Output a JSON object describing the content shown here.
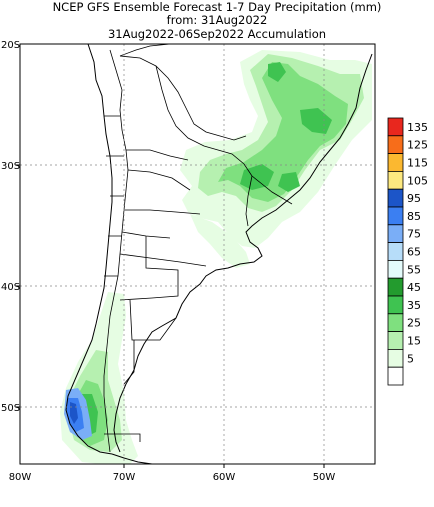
{
  "title": {
    "line1": "NCEP GFS Ensemble Forecast 1-7 Day Precipitation (mm)",
    "line2": "from: 31Aug2022",
    "line3": "31Aug2022-06Sep2022 Accumulation"
  },
  "map": {
    "region": "Southern South America",
    "latitude_labels": [
      "20S",
      "30S",
      "40S",
      "50S"
    ],
    "longitude_labels": [
      "80W",
      "70W",
      "60W",
      "50W"
    ],
    "grid": "dotted",
    "land_fill": "#ffffff",
    "border_color": "#000000"
  },
  "legend": {
    "placement": "right",
    "bins": [
      {
        "label": "135",
        "color": "#e8271e"
      },
      {
        "label": "125",
        "color": "#f76d1a"
      },
      {
        "label": "115",
        "color": "#fbb830"
      },
      {
        "label": "105",
        "color": "#fde980"
      },
      {
        "label": "95",
        "color": "#1c55c8"
      },
      {
        "label": "85",
        "color": "#3b7ff2"
      },
      {
        "label": "75",
        "color": "#7aaef7"
      },
      {
        "label": "65",
        "color": "#b7ddf9"
      },
      {
        "label": "55",
        "color": "#e4fbfb"
      },
      {
        "label": "45",
        "color": "#239b2e"
      },
      {
        "label": "35",
        "color": "#3fc351"
      },
      {
        "label": "25",
        "color": "#7fe07f"
      },
      {
        "label": "15",
        "color": "#b6f0b0"
      },
      {
        "label": "5",
        "color": "#e6fde3"
      },
      {
        "label": "",
        "color": "#ffffff"
      }
    ]
  }
}
